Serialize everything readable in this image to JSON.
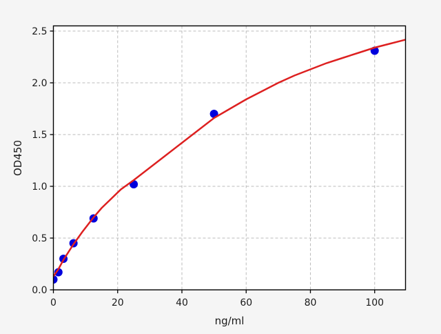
{
  "figure": {
    "background_color": "#f5f5f5",
    "plot_background_color": "#ffffff",
    "grid_color": "#bbbbbb",
    "spine_color": "#000000",
    "text_color": "#1a1a1a"
  },
  "chart_data": {
    "type": "scatter",
    "title": "",
    "xlabel": "ng/ml",
    "ylabel": "OD450",
    "xlim": [
      0,
      109.6
    ],
    "ylim": [
      0,
      2.55
    ],
    "xticks": [
      0,
      20,
      40,
      60,
      80,
      100
    ],
    "xtick_labels": [
      "0",
      "20",
      "40",
      "60",
      "80",
      "100"
    ],
    "yticks": [
      0.0,
      0.5,
      1.0,
      1.5,
      2.0,
      2.5
    ],
    "ytick_labels": [
      "0.0",
      "0.5",
      "1.0",
      "1.5",
      "2.0",
      "2.5"
    ],
    "grid": true,
    "grid_style": "dashed",
    "legend": null,
    "series": [
      {
        "name": "standard-points",
        "type": "scatter",
        "marker": "circle",
        "color": "#0000dd",
        "x": [
          0,
          1.5625,
          3.125,
          6.25,
          12.5,
          25,
          50,
          100
        ],
        "y": [
          0.1,
          0.17,
          0.3,
          0.45,
          0.69,
          1.02,
          1.7,
          2.31
        ]
      },
      {
        "name": "fit-curve",
        "type": "line",
        "color": "#dd2020",
        "x": [
          0,
          1.5625,
          3.125,
          6.25,
          9,
          12.5,
          15,
          18,
          21,
          25,
          30,
          35,
          40,
          45,
          50,
          55,
          60,
          65,
          70,
          75,
          80,
          85,
          90,
          95,
          100,
          105,
          110
        ],
        "y": [
          0.13,
          0.2,
          0.29,
          0.44,
          0.56,
          0.7,
          0.79,
          0.88,
          0.97,
          1.06,
          1.18,
          1.3,
          1.42,
          1.54,
          1.66,
          1.75,
          1.84,
          1.92,
          2.0,
          2.07,
          2.13,
          2.19,
          2.24,
          2.29,
          2.34,
          2.38,
          2.42
        ]
      }
    ]
  }
}
